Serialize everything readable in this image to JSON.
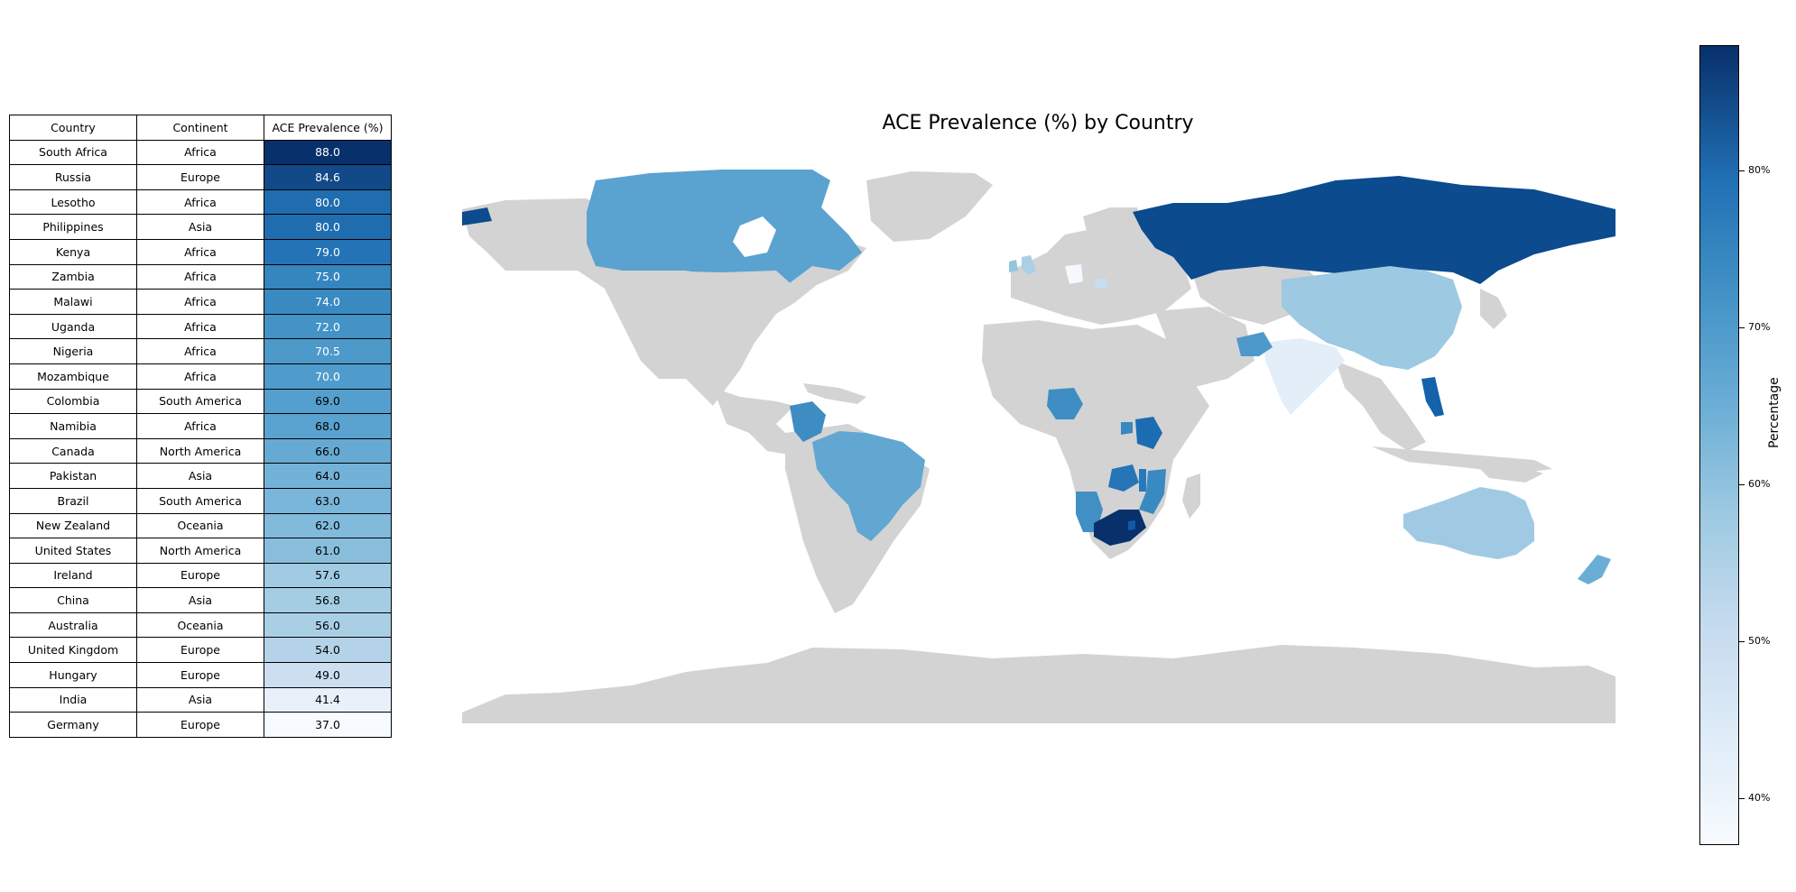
{
  "chart_data": {
    "type": "choropleth",
    "title": "ACE Prevalence (%) by Country",
    "colorbar": {
      "label": "Percentage",
      "range": [
        37.0,
        88.0
      ],
      "ticks": [
        40,
        50,
        60,
        70,
        80
      ],
      "tick_labels": [
        "40%",
        "50%",
        "60%",
        "70%",
        "80%"
      ],
      "colormap": "Blues"
    },
    "table": {
      "headers": [
        "Country",
        "Continent",
        "ACE Prevalence (%)"
      ],
      "rows": [
        {
          "country": "South Africa",
          "continent": "Africa",
          "value": "88.0"
        },
        {
          "country": "Russia",
          "continent": "Europe",
          "value": "84.6"
        },
        {
          "country": "Lesotho",
          "continent": "Africa",
          "value": "80.0"
        },
        {
          "country": "Philippines",
          "continent": "Asia",
          "value": "80.0"
        },
        {
          "country": "Kenya",
          "continent": "Africa",
          "value": "79.0"
        },
        {
          "country": "Zambia",
          "continent": "Africa",
          "value": "75.0"
        },
        {
          "country": "Malawi",
          "continent": "Africa",
          "value": "74.0"
        },
        {
          "country": "Uganda",
          "continent": "Africa",
          "value": "72.0"
        },
        {
          "country": "Nigeria",
          "continent": "Africa",
          "value": "70.5"
        },
        {
          "country": "Mozambique",
          "continent": "Africa",
          "value": "70.0"
        },
        {
          "country": "Colombia",
          "continent": "South America",
          "value": "69.0"
        },
        {
          "country": "Namibia",
          "continent": "Africa",
          "value": "68.0"
        },
        {
          "country": "Canada",
          "continent": "North America",
          "value": "66.0"
        },
        {
          "country": "Pakistan",
          "continent": "Asia",
          "value": "64.0"
        },
        {
          "country": "Brazil",
          "continent": "South America",
          "value": "63.0"
        },
        {
          "country": "New Zealand",
          "continent": "Oceania",
          "value": "62.0"
        },
        {
          "country": "United States",
          "continent": "North America",
          "value": "61.0"
        },
        {
          "country": "Ireland",
          "continent": "Europe",
          "value": "57.6"
        },
        {
          "country": "China",
          "continent": "Asia",
          "value": "56.8"
        },
        {
          "country": "Australia",
          "continent": "Oceania",
          "value": "56.0"
        },
        {
          "country": "United Kingdom",
          "continent": "Europe",
          "value": "54.0"
        },
        {
          "country": "Hungary",
          "continent": "Europe",
          "value": "49.0"
        },
        {
          "country": "India",
          "continent": "Asia",
          "value": "41.4"
        },
        {
          "country": "Germany",
          "continent": "Europe",
          "value": "37.0"
        }
      ]
    }
  }
}
